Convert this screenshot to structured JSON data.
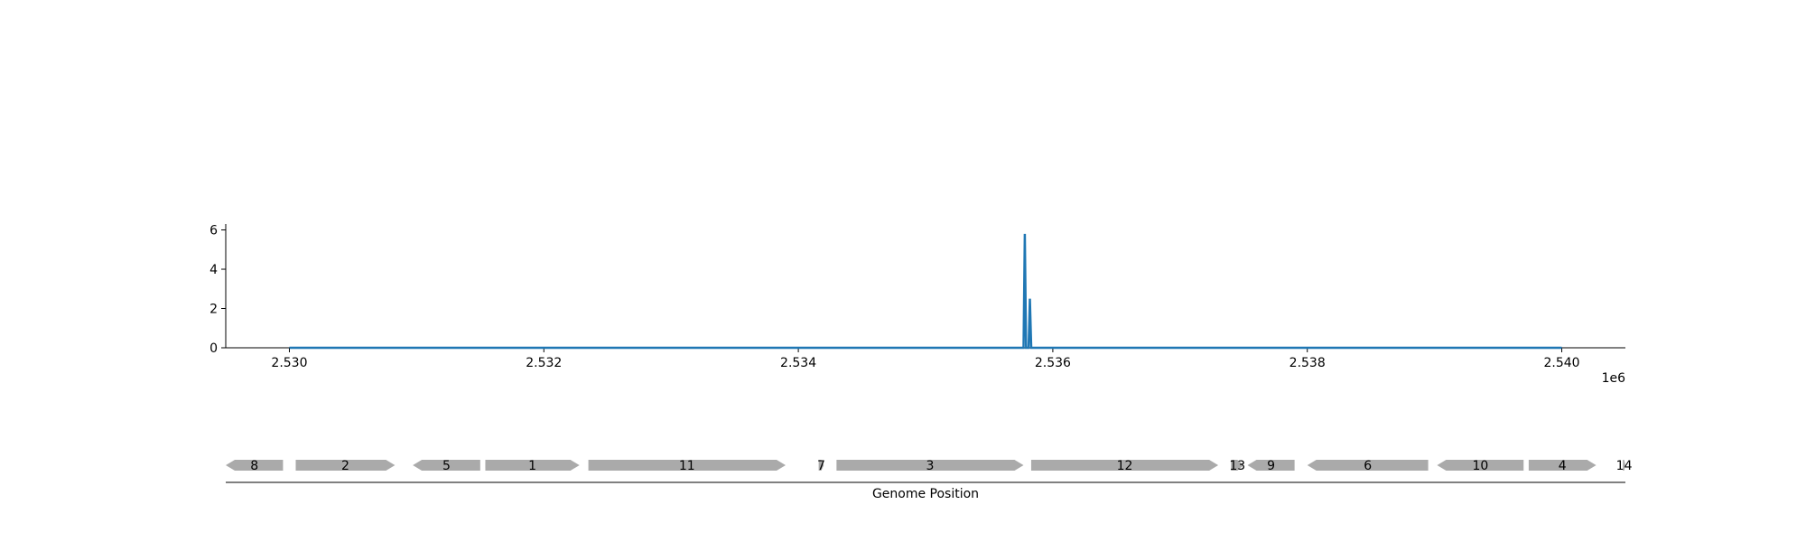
{
  "chart_data": [
    {
      "type": "line",
      "title": "",
      "xlabel": "",
      "ylabel": "",
      "x_offset_label": "1e6",
      "xlim": [
        2529500,
        2540500
      ],
      "ylim": [
        0,
        6.3
      ],
      "x_ticks": [
        2530000,
        2532000,
        2534000,
        2536000,
        2538000,
        2540000
      ],
      "x_tick_labels": [
        "2.530",
        "2.532",
        "2.534",
        "2.536",
        "2.538",
        "2.540"
      ],
      "y_ticks": [
        0,
        2,
        4,
        6
      ],
      "y_tick_labels": [
        "0",
        "2",
        "4",
        "6"
      ],
      "series": [
        {
          "color": "#1f77b4",
          "x": [
            2530000,
            2535770,
            2535780,
            2535790,
            2535810,
            2535820,
            2535830,
            2540000
          ],
          "y": [
            0,
            0,
            5.8,
            0,
            0,
            2.5,
            0,
            0
          ]
        }
      ],
      "grid": false
    },
    {
      "type": "gene_map",
      "xlabel": "Genome Position",
      "track_color": "#aaaaaa",
      "genes": [
        {
          "label": "8",
          "start": 2529500,
          "end": 2529950,
          "strand": "-"
        },
        {
          "label": "2",
          "start": 2530050,
          "end": 2530830,
          "strand": "+"
        },
        {
          "label": "5",
          "start": 2530970,
          "end": 2531500,
          "strand": "-"
        },
        {
          "label": "1",
          "start": 2531540,
          "end": 2532280,
          "strand": "+"
        },
        {
          "label": "11",
          "start": 2532350,
          "end": 2533900,
          "strand": "+"
        },
        {
          "label": "7",
          "start": 2534160,
          "end": 2534200,
          "strand": "+"
        },
        {
          "label": "3",
          "start": 2534300,
          "end": 2535770,
          "strand": "+"
        },
        {
          "label": "12",
          "start": 2535830,
          "end": 2537300,
          "strand": "+"
        },
        {
          "label": "13",
          "start": 2537400,
          "end": 2537500,
          "strand": "+"
        },
        {
          "label": "9",
          "start": 2537530,
          "end": 2537900,
          "strand": "-"
        },
        {
          "label": "6",
          "start": 2538000,
          "end": 2538950,
          "strand": "-"
        },
        {
          "label": "10",
          "start": 2539020,
          "end": 2539700,
          "strand": "-"
        },
        {
          "label": "4",
          "start": 2539740,
          "end": 2540270,
          "strand": "+"
        },
        {
          "label": "14",
          "start": 2540480,
          "end": 2540500,
          "strand": "+"
        }
      ]
    }
  ]
}
